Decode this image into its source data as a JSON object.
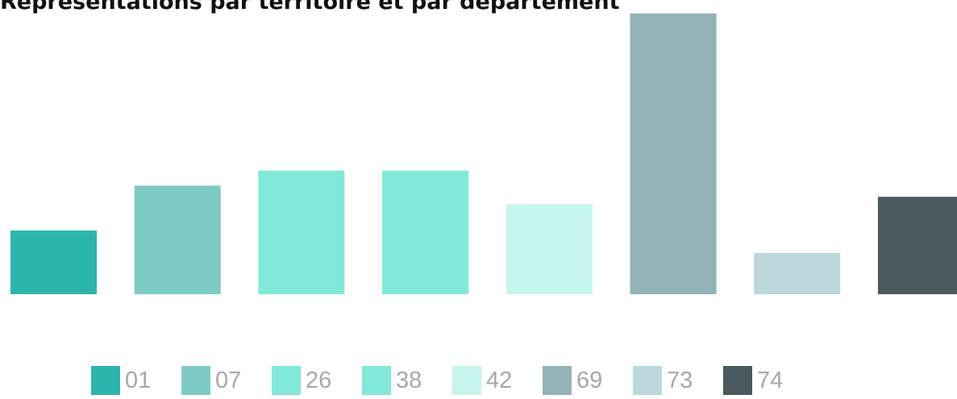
{
  "title": "Représentations par territoire et par département",
  "chart_data": {
    "type": "bar",
    "title": "Représentations par territoire et par département",
    "categories": [
      "01",
      "07",
      "26",
      "38",
      "42",
      "69",
      "73",
      "74"
    ],
    "values": [
      17,
      29,
      33,
      33,
      24,
      75,
      11,
      26
    ],
    "colors": [
      "#2bb5ad",
      "#7ecbc6",
      "#80e9d8",
      "#80e9d8",
      "#c5f5ec",
      "#93b3b6",
      "#bcd8dc",
      "#4b5a5e"
    ],
    "ylim": [
      0,
      76
    ],
    "xlabel": "",
    "ylabel": "",
    "grid": false,
    "axes_visible": false,
    "legend_position": "bottom"
  }
}
